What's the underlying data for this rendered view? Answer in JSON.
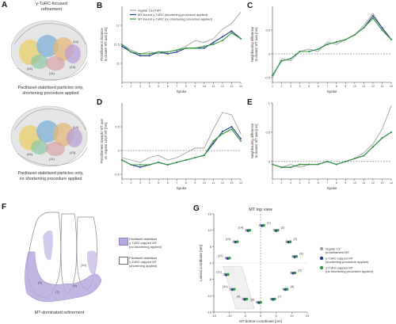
{
  "figure": {
    "panel_a": {
      "letter": "A",
      "top_caption": "γ-TuRC-focused\nrefinement",
      "label_1": "Paclitaxel-stabilised particles only,\nshortening procedure applied",
      "label_2": "Paclitaxel-stabilised particles only,\nno shortening procedure applied"
    },
    "panel_f": {
      "letter": "F",
      "caption": "MT-dominated refinement",
      "legend": [
        {
          "swatch": "#b7a9e0",
          "text": "Paclitaxel-stabilised\nγ-TuRC-capped MT\n(no shortening applied)"
        },
        {
          "swatch": "#ffffff",
          "text": "Paclitaxel-stabilised\nγ-TuRC-capped MT\n(shortening applied)"
        }
      ]
    },
    "panel_g": {
      "letter": "G",
      "title": "MT top view",
      "xlabel": "MT bottom coordinate [nm]",
      "ylabel": "Lateral coordinate [nm]",
      "legend": [
        {
          "color": "#a0a0a0",
          "text": "regular 13-\nprotofilament MT"
        },
        {
          "color": "#1f3a8c",
          "text": "γ-TuRC-capped MT\n(shortening procedure applied)"
        },
        {
          "color": "#2f9a3a",
          "text": "γ-TuRC-capped MT\n(no shortening procedure applied)"
        }
      ]
    }
  },
  "colors": {
    "regular": "#a0a0a0",
    "short": "#1f3a8c",
    "noshort": "#2f9a3a"
  },
  "chart_data": [
    {
      "id": "B",
      "type": "line",
      "letter": "B",
      "ylabel": "Protofilament distance\nto closest MT axis [nm]",
      "xlabel": "Spoke",
      "legend": [
        "regular 13-pf MT",
        "MT-bound γ-TuRC (shortening procedure applied)",
        "MT-bound γ-TuRC (no shortening procedure applied)"
      ],
      "x": [
        1,
        2,
        3,
        4,
        5,
        6,
        7,
        8,
        9,
        10,
        11,
        12,
        13,
        14
      ],
      "ylim": [
        10.5,
        12.5
      ],
      "yticks": [
        11,
        11.5,
        12
      ],
      "series": [
        {
          "key": "regular",
          "values": [
            11.5,
            11.35,
            11.25,
            11.3,
            11.25,
            11.3,
            11.35,
            11.45,
            11.6,
            11.55,
            11.65,
            11.9,
            12.05,
            12.35
          ]
        },
        {
          "key": "short",
          "values": [
            11.45,
            11.3,
            11.2,
            11.2,
            11.3,
            11.25,
            11.3,
            11.4,
            11.4,
            11.4,
            11.55,
            11.7,
            11.85,
            11.65
          ]
        },
        {
          "key": "noshort",
          "values": [
            11.5,
            11.3,
            11.25,
            11.25,
            11.3,
            11.3,
            11.35,
            11.4,
            11.4,
            11.45,
            11.5,
            11.6,
            11.8,
            11.65
          ]
        }
      ]
    },
    {
      "id": "C",
      "type": "line",
      "letter": "C",
      "ylabel": "Neighbouring difference\nto closest MT axis [nm]",
      "xlabel": "Spoke",
      "x": [
        1,
        2,
        3,
        4,
        5,
        6,
        7,
        8,
        9,
        10,
        11,
        12,
        13,
        14
      ],
      "ylim": [
        -0.6,
        1.0
      ],
      "yticks": [
        -0.5,
        0,
        0.5
      ],
      "ref": 0,
      "series": [
        {
          "key": "regular",
          "values": [
            -0.5,
            -0.1,
            -0.15,
            0.05,
            0.1,
            0.05,
            0.25,
            0.2,
            0.3,
            0.4,
            0.6,
            0.85,
            0.55,
            0.3
          ]
        },
        {
          "key": "short",
          "values": [
            -0.45,
            -0.15,
            -0.1,
            0.05,
            0.05,
            0.1,
            0.2,
            0.25,
            0.3,
            0.4,
            0.55,
            0.8,
            0.55,
            0.3
          ]
        },
        {
          "key": "noshort",
          "values": [
            -0.45,
            -0.15,
            -0.1,
            0.05,
            0.05,
            0.1,
            0.2,
            0.25,
            0.3,
            0.4,
            0.55,
            0.75,
            0.5,
            0.3
          ]
        }
      ]
    },
    {
      "id": "D",
      "type": "line",
      "letter": "D",
      "ylabel": "Protofilament towards MT axis\nvs. regular 13-pf MT [nm]",
      "xlabel": "Spoke",
      "x": [
        1,
        2,
        3,
        4,
        5,
        6,
        7,
        8,
        9,
        10,
        11,
        12,
        13,
        14
      ],
      "ylim": [
        -0.6,
        1.0
      ],
      "yticks": [
        -0.5,
        0,
        0.5
      ],
      "ref": 0,
      "series": [
        {
          "key": "regular",
          "values": [
            -0.15,
            -0.2,
            -0.25,
            -0.15,
            -0.1,
            -0.2,
            -0.15,
            -0.05,
            0.05,
            0.05,
            0.45,
            0.8,
            0.75,
            0.35
          ]
        },
        {
          "key": "short",
          "values": [
            -0.2,
            -0.3,
            -0.35,
            -0.3,
            -0.25,
            -0.3,
            -0.25,
            -0.2,
            -0.15,
            -0.1,
            0.15,
            0.4,
            0.5,
            0.25
          ]
        },
        {
          "key": "noshort",
          "values": [
            -0.2,
            -0.3,
            -0.3,
            -0.3,
            -0.25,
            -0.3,
            -0.25,
            -0.2,
            -0.15,
            -0.1,
            0.2,
            0.35,
            0.45,
            0.2
          ]
        }
      ]
    },
    {
      "id": "E",
      "type": "line",
      "letter": "E",
      "ylabel": "Neighbouring difference\nto closest MT axis [nm]",
      "xlabel": "Spoke",
      "x": [
        1,
        2,
        3,
        4,
        5,
        6,
        7,
        8,
        9,
        10,
        11,
        12,
        13,
        14
      ],
      "ylim": [
        -0.3,
        1.0
      ],
      "yticks": [
        0,
        0.5,
        1
      ],
      "ref": 0,
      "series": [
        {
          "key": "regular",
          "values": [
            -0.05,
            -0.1,
            -0.05,
            -0.1,
            -0.05,
            -0.05,
            0.0,
            -0.05,
            0.0,
            0.05,
            0.15,
            0.3,
            0.55,
            0.95
          ]
        },
        {
          "key": "short",
          "values": [
            -0.05,
            -0.1,
            -0.1,
            -0.05,
            -0.05,
            -0.05,
            0.0,
            -0.05,
            0.0,
            0.05,
            0.1,
            0.25,
            0.4,
            0.5
          ]
        },
        {
          "key": "noshort",
          "values": [
            -0.05,
            -0.1,
            -0.1,
            -0.05,
            -0.05,
            -0.05,
            0.0,
            -0.05,
            0.0,
            0.05,
            0.1,
            0.25,
            0.4,
            0.5
          ]
        }
      ]
    },
    {
      "id": "G",
      "type": "scatter",
      "xlim": [
        -15,
        15
      ],
      "ylim": [
        -15,
        15
      ],
      "xticks": [
        -15,
        -10,
        -5,
        0,
        5,
        10,
        15
      ],
      "yticks": [
        -15,
        -10,
        -5,
        0,
        5,
        10,
        15
      ],
      "points": [
        {
          "label": "(1)",
          "x": 0.5,
          "y": 11.5
        },
        {
          "label": "(2)",
          "x": 5,
          "y": 10
        },
        {
          "label": "(3)",
          "x": 9,
          "y": 6.5
        },
        {
          "label": "(4)",
          "x": 11,
          "y": 2
        },
        {
          "label": "(5)",
          "x": 10.5,
          "y": -3
        },
        {
          "label": "(6)",
          "x": 8,
          "y": -8
        },
        {
          "label": "(7)",
          "x": 4,
          "y": -11
        },
        {
          "label": "(8)",
          "x": -0.5,
          "y": -12
        },
        {
          "label": "(9)",
          "x": -5,
          "y": -11
        },
        {
          "label": "(10)",
          "x": -9,
          "y": -8
        },
        {
          "label": "(11)",
          "x": -11,
          "y": -3.5
        },
        {
          "label": "(12)",
          "x": -10.5,
          "y": 1.5
        },
        {
          "label": "(13)",
          "x": -8,
          "y": 6.5
        },
        {
          "label": "(14)",
          "x": -4,
          "y": 10
        }
      ]
    }
  ]
}
